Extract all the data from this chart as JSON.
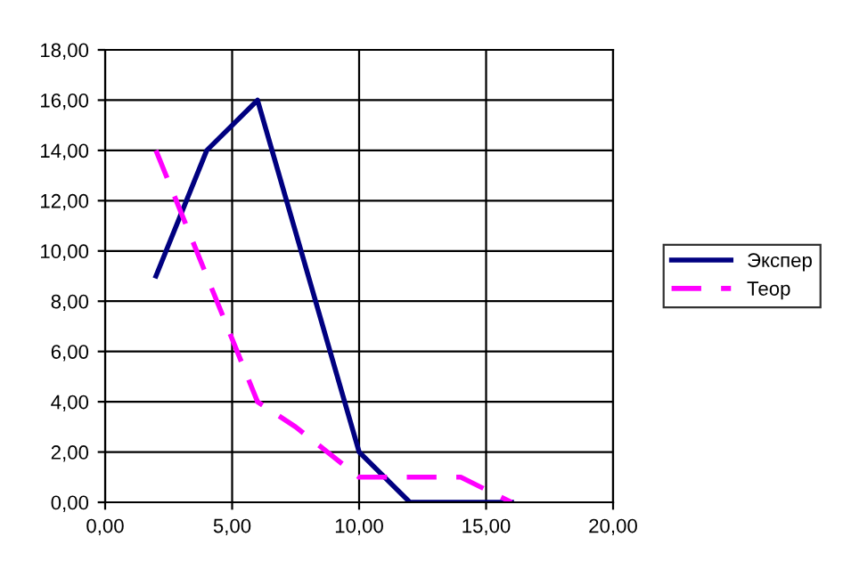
{
  "chart_data": {
    "type": "line",
    "series": [
      {
        "name": "Экспер",
        "color": "#000080",
        "line_style": "solid",
        "x": [
          2,
          4,
          6,
          10,
          12,
          14,
          16
        ],
        "values": [
          9,
          14,
          16,
          2,
          0,
          0,
          0
        ]
      },
      {
        "name": "Теор",
        "color": "#ff00ff",
        "line_style": "dashed",
        "x": [
          2,
          6,
          7.5,
          10,
          14,
          16
        ],
        "values": [
          14,
          4,
          3,
          1,
          1,
          0
        ]
      }
    ],
    "xlim": [
      0,
      20
    ],
    "ylim": [
      0,
      18
    ],
    "xticks": [
      {
        "value": 0,
        "label": "0,00"
      },
      {
        "value": 5,
        "label": "5,00"
      },
      {
        "value": 10,
        "label": "10,00"
      },
      {
        "value": 15,
        "label": "15,00"
      },
      {
        "value": 20,
        "label": "20,00"
      }
    ],
    "yticks": [
      {
        "value": 0,
        "label": "0,00"
      },
      {
        "value": 2,
        "label": "2,00"
      },
      {
        "value": 4,
        "label": "4,00"
      },
      {
        "value": 6,
        "label": "6,00"
      },
      {
        "value": 8,
        "label": "8,00"
      },
      {
        "value": 10,
        "label": "10,00"
      },
      {
        "value": 12,
        "label": "12,00"
      },
      {
        "value": 14,
        "label": "14,00"
      },
      {
        "value": 16,
        "label": "16,00"
      },
      {
        "value": 18,
        "label": "18,00"
      }
    ],
    "grid": true,
    "legend": "right",
    "marker": "none"
  }
}
